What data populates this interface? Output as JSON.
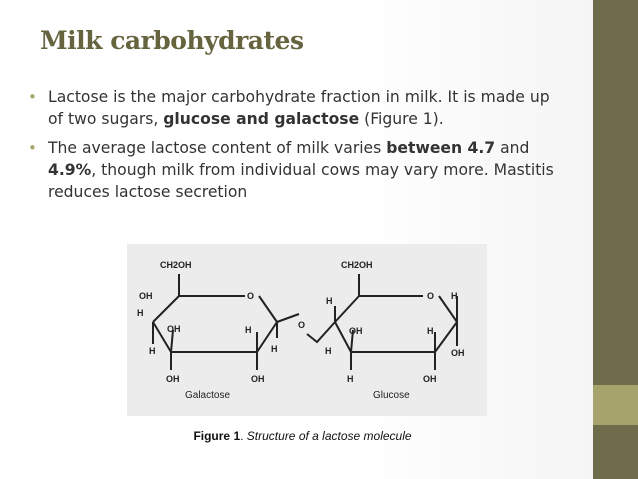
{
  "slide": {
    "title": "Milk carbohydrates",
    "bullets": [
      {
        "t1": "Lactose is the major carbohydrate fraction in milk. It is made up of two sugars, ",
        "b1": "glucose and galactose",
        "t2": " (Figure 1)."
      },
      {
        "t1": " The average lactose content of milk varies ",
        "b1": "between 4.7",
        "t2": " and ",
        "b2": "4.9%",
        "t3": ", though milk from individual cows may vary more. Mastitis reduces lactose secretion"
      }
    ],
    "figure": {
      "labels": {
        "ch2oh_left": "CH2OH",
        "ch2oh_right": "CH2OH",
        "oh_left_top": "OH",
        "o_left_ring": "O",
        "oh_left_mid": "OH",
        "h_left_c4": "H",
        "h_left_mid": "H",
        "h_left_c1": "H",
        "h_left_bottom": "H",
        "oh_left_bottom": "OH",
        "o_bridge": "O",
        "h_right_c4": "H",
        "o_right_ring": "O",
        "h_right_top": "H",
        "oh_right_mid": "OH",
        "h_right_mid": "H",
        "h_right_c2": "H",
        "oh_right_c1": "OH",
        "h_right_bottom": "H",
        "oh_right_bottom": "OH",
        "galactose": "Galactose",
        "glucose": "Glucose"
      }
    },
    "caption": {
      "label": "Figure 1",
      "text": "Structure of a lactose molecule"
    }
  }
}
